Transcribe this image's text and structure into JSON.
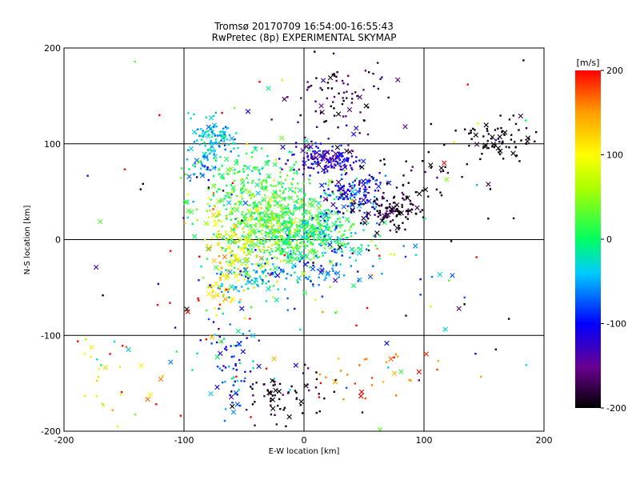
{
  "chart_data": {
    "type": "scatter",
    "title": "Tromsø 20170709 16:54:00-16:55:43",
    "subtitle": "RwPretec (8p) EXPERIMENTAL SKYMAP",
    "xlabel": "E-W location [km]",
    "ylabel": "N-S location [km]",
    "xlim": [
      -200,
      200
    ],
    "ylim": [
      -200,
      200
    ],
    "x_ticks": [
      "-200",
      "-100",
      "0",
      "100",
      "200"
    ],
    "y_ticks": [
      "-200",
      "-100",
      "0",
      "100",
      "200"
    ],
    "grid": true,
    "colorbar": {
      "label": "[m/s]",
      "range": [
        -200,
        200
      ],
      "ticks": [
        "-200",
        "-100",
        "0",
        "100",
        "200"
      ],
      "colormap": "rainbow (black-purple-blue-cyan-green-yellow-orange-red)"
    },
    "markers": [
      "dot",
      "x"
    ],
    "clusters": [
      {
        "x": -20,
        "y": 10,
        "sx": 25,
        "sy": 22,
        "v": 20,
        "vs": 25,
        "n": 520
      },
      {
        "x": 15,
        "y": 10,
        "sx": 18,
        "sy": 15,
        "v": -10,
        "vs": 30,
        "n": 180
      },
      {
        "x": -40,
        "y": 55,
        "sx": 25,
        "sy": 20,
        "v": 10,
        "vs": 20,
        "n": 200
      },
      {
        "x": 20,
        "y": 85,
        "sx": 15,
        "sy": 8,
        "v": -120,
        "vs": 25,
        "n": 150
      },
      {
        "x": 45,
        "y": 45,
        "sx": 15,
        "sy": 12,
        "v": -110,
        "vs": 40,
        "n": 150
      },
      {
        "x": 75,
        "y": 30,
        "sx": 12,
        "sy": 10,
        "v": -190,
        "vs": 15,
        "n": 100
      },
      {
        "x": -75,
        "y": 105,
        "sx": 12,
        "sy": 12,
        "v": -40,
        "vs": 20,
        "n": 100
      },
      {
        "x": -55,
        "y": 0,
        "sx": 18,
        "sy": 22,
        "v": 100,
        "vs": 25,
        "n": 140
      },
      {
        "x": -65,
        "y": -50,
        "sx": 10,
        "sy": 15,
        "v": 110,
        "vs": 30,
        "n": 55
      },
      {
        "x": -85,
        "y": 75,
        "sx": 6,
        "sy": 8,
        "v": -60,
        "vs": 20,
        "n": 30
      },
      {
        "x": -45,
        "y": -40,
        "sx": 15,
        "sy": 10,
        "v": -50,
        "vs": 30,
        "n": 60
      },
      {
        "x": 165,
        "y": 105,
        "sx": 15,
        "sy": 10,
        "v": -195,
        "vs": 10,
        "n": 70
      },
      {
        "x": 10,
        "y": -30,
        "sx": 35,
        "sy": 15,
        "v": -60,
        "vs": 30,
        "n": 110
      },
      {
        "x": -60,
        "y": -130,
        "sx": 10,
        "sy": 30,
        "v": -80,
        "vs": 40,
        "n": 80
      },
      {
        "x": -20,
        "y": -165,
        "sx": 18,
        "sy": 18,
        "v": -190,
        "vs": 20,
        "n": 70
      },
      {
        "x": 30,
        "y": 150,
        "sx": 20,
        "sy": 25,
        "v": -175,
        "vs": 25,
        "n": 80
      },
      {
        "x": 100,
        "y": 70,
        "sx": 20,
        "sy": 20,
        "v": -190,
        "vs": 20,
        "n": 40
      },
      {
        "x": 60,
        "y": -140,
        "sx": 25,
        "sy": 15,
        "v": 170,
        "vs": 30,
        "n": 30
      },
      {
        "x": -160,
        "y": -150,
        "sx": 20,
        "sy": 20,
        "v": 140,
        "vs": 60,
        "n": 28
      },
      {
        "x": 0,
        "y": 0,
        "sx": 130,
        "sy": 130,
        "v": 0,
        "vs": 200,
        "n": 200
      }
    ]
  }
}
